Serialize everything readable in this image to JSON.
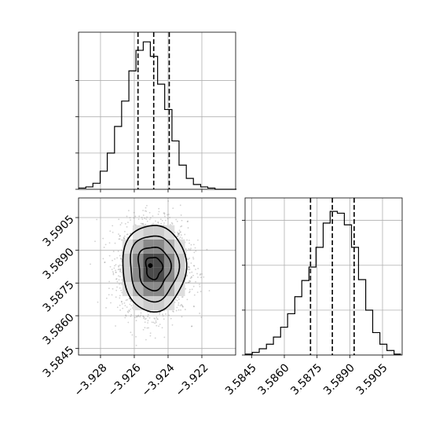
{
  "chart_data": {
    "type": "corner",
    "parameters": [
      "",
      ""
    ],
    "grid": true,
    "panels": [
      {
        "id": "hist-x",
        "type": "histogram",
        "xlim": [
          -3.9293,
          -3.92
        ],
        "bin_edges": [
          -3.9293,
          -3.92887,
          -3.92845,
          -3.92802,
          -3.9276,
          -3.92717,
          -3.92675,
          -3.92632,
          -3.9259,
          -3.92547,
          -3.92505,
          -3.92462,
          -3.9242,
          -3.92377,
          -3.92335,
          -3.92292,
          -3.9225,
          -3.92207,
          -3.92165,
          -3.92122,
          -3.9208,
          -3.92037,
          -3.91995
        ],
        "counts": [
          1,
          2,
          5,
          15,
          30,
          52,
          73,
          98,
          115,
          122,
          110,
          87,
          66,
          40,
          20,
          9,
          4,
          2,
          1,
          0,
          0,
          0
        ],
        "ylim": [
          0,
          130
        ],
        "quantiles": [
          -3.92578,
          -3.92485,
          -3.92393
        ],
        "y_ticks_unlabeled": [
          0,
          30,
          60,
          90
        ]
      },
      {
        "id": "hist-y",
        "type": "histogram",
        "xlim": [
          3.5842,
          3.5914
        ],
        "bin_edges": [
          3.5842,
          3.58453,
          3.58485,
          3.58518,
          3.5855,
          3.58583,
          3.58615,
          3.58648,
          3.5868,
          3.58713,
          3.58745,
          3.58778,
          3.5881,
          3.58843,
          3.58875,
          3.58908,
          3.5894,
          3.58973,
          3.59005,
          3.59038,
          3.5907,
          3.59103,
          3.59135
        ],
        "counts": [
          1,
          3,
          7,
          12,
          20,
          31,
          46,
          65,
          83,
          98,
          120,
          147,
          160,
          158,
          145,
          120,
          84,
          50,
          25,
          12,
          5,
          1
        ],
        "ylim": [
          0,
          175
        ],
        "quantiles": [
          3.5872,
          3.5882,
          3.5892
        ],
        "x_ticks": [
          "3.5845",
          "3.5860",
          "3.5875",
          "3.5890",
          "3.5905"
        ],
        "x_tick_values": [
          3.5845,
          3.586,
          3.5875,
          3.589,
          3.5905
        ],
        "y_ticks_unlabeled": [
          0,
          50,
          100,
          150
        ]
      },
      {
        "id": "joint",
        "type": "2d-density",
        "xlim": [
          -3.9293,
          -3.92
        ],
        "ylim": [
          3.5842,
          3.5914
        ],
        "center": [
          -3.92485,
          3.5882
        ],
        "std": [
          0.00095,
          0.001
        ],
        "contour_levels": [
          0.12,
          0.39,
          0.68,
          0.86
        ],
        "x_ticks": [
          "−3.928",
          "−3.926",
          "−3.924",
          "−3.922"
        ],
        "x_tick_values": [
          -3.928,
          -3.926,
          -3.924,
          -3.922
        ],
        "y_ticks": [
          "3.5845",
          "3.5860",
          "3.5875",
          "3.5890",
          "3.5905"
        ],
        "y_tick_values": [
          3.5845,
          3.586,
          3.5875,
          3.589,
          3.5905
        ]
      }
    ]
  }
}
